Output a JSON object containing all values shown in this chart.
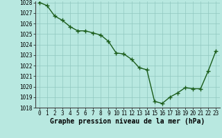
{
  "x": [
    0,
    1,
    2,
    3,
    4,
    5,
    6,
    7,
    8,
    9,
    10,
    11,
    12,
    13,
    14,
    15,
    16,
    17,
    18,
    19,
    20,
    21,
    22,
    23
  ],
  "y": [
    1028.0,
    1027.7,
    1026.7,
    1026.3,
    1025.7,
    1025.3,
    1025.3,
    1025.1,
    1024.9,
    1024.3,
    1023.2,
    1023.1,
    1022.6,
    1021.8,
    1021.6,
    1018.6,
    1018.4,
    1019.0,
    1019.4,
    1019.9,
    1019.8,
    1019.8,
    1021.5,
    1023.4
  ],
  "ylim": [
    1018,
    1028
  ],
  "xlim": [
    0,
    23
  ],
  "yticks": [
    1018,
    1019,
    1020,
    1021,
    1022,
    1023,
    1024,
    1025,
    1026,
    1027,
    1028
  ],
  "xticks": [
    0,
    1,
    2,
    3,
    4,
    5,
    6,
    7,
    8,
    9,
    10,
    11,
    12,
    13,
    14,
    15,
    16,
    17,
    18,
    19,
    20,
    21,
    22,
    23
  ],
  "line_color": "#1a5c1a",
  "marker_color": "#1a5c1a",
  "bg_color": "#b8e8e0",
  "grid_color": "#90c8c0",
  "xlabel": "Graphe pression niveau de la mer (hPa)",
  "xlabel_fontsize": 7,
  "tick_fontsize": 5.5,
  "line_width": 1.0,
  "marker_size": 2.5
}
